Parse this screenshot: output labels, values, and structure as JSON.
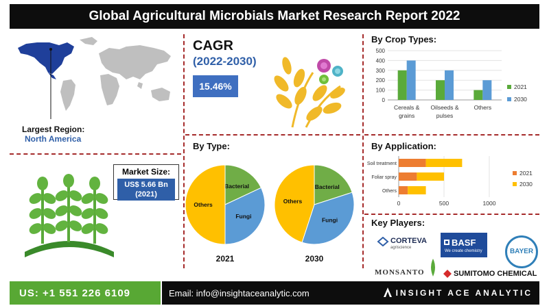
{
  "title": "Global Agricultural Microbials Market Research Report 2022",
  "largest_region": {
    "label": "Largest Region:",
    "value": "North America"
  },
  "market_size": {
    "label": "Market Size:",
    "value_line1": "US$ 5.66 Bn",
    "value_line2": "(2021)"
  },
  "cagr": {
    "title": "CAGR",
    "period": "(2022-2030)",
    "value": "15.46%"
  },
  "colors": {
    "bar_2021": "#5aaa3a",
    "bar_2030": "#5b9bd5",
    "app_2021": "#ed7d31",
    "app_2030": "#ffc000",
    "others": "#ffc000",
    "bacterial": "#70ad47",
    "fungi": "#5b9bd5",
    "accent_blue": "#2f5fa8"
  },
  "chart_data": [
    {
      "type": "bar",
      "title": "By Crop Types:",
      "categories": [
        "Cereals & grains",
        "Oilseeds & pulses",
        "Others"
      ],
      "category_lines": [
        [
          "Cereals &",
          "grains"
        ],
        [
          "Oilseeds &",
          "pulses"
        ],
        [
          "Others"
        ]
      ],
      "series": [
        {
          "name": "2021",
          "values": [
            300,
            200,
            100
          ]
        },
        {
          "name": "2030",
          "values": [
            400,
            300,
            200
          ]
        }
      ],
      "ylim": [
        0,
        500
      ],
      "yticks": [
        "0",
        "100",
        "200",
        "300",
        "400",
        "500"
      ],
      "legend": "right"
    },
    {
      "type": "bar",
      "orientation": "horizontal",
      "title": "By Application:",
      "categories": [
        "Soil treatment",
        "Foliar spray",
        "Others"
      ],
      "series": [
        {
          "name": "2021",
          "values": [
            300,
            200,
            100
          ]
        },
        {
          "name": "2030",
          "values": [
            400,
            300,
            200
          ]
        }
      ],
      "stacked": true,
      "xlim": [
        0,
        1000
      ],
      "xticks": [
        "0",
        "500",
        "1000"
      ],
      "legend": "right"
    },
    {
      "type": "pie",
      "title": "By Type:",
      "label": "2021",
      "slices": [
        {
          "name": "Bacterial",
          "value": 18
        },
        {
          "name": "Fungi",
          "value": 32
        },
        {
          "name": "Others",
          "value": 50
        }
      ]
    },
    {
      "type": "pie",
      "label": "2030",
      "slices": [
        {
          "name": "Bacterial",
          "value": 20
        },
        {
          "name": "Fungi",
          "value": 35
        },
        {
          "name": "Others",
          "value": 45
        }
      ]
    }
  ],
  "key_players": {
    "title": "Key Players:",
    "items": [
      "CORTEVA",
      "BASF",
      "BAYER",
      "MONSANTO",
      "SUMITOMO CHEMICAL"
    ],
    "basf_tagline": "We create chemistry",
    "corteva_tagline": "agriscience"
  },
  "footer": {
    "phone": "US: +1 551 226 6109",
    "email": "Email: info@insightaceanalytic.com",
    "brand": "INSIGHT ACE ANALYTIC"
  }
}
